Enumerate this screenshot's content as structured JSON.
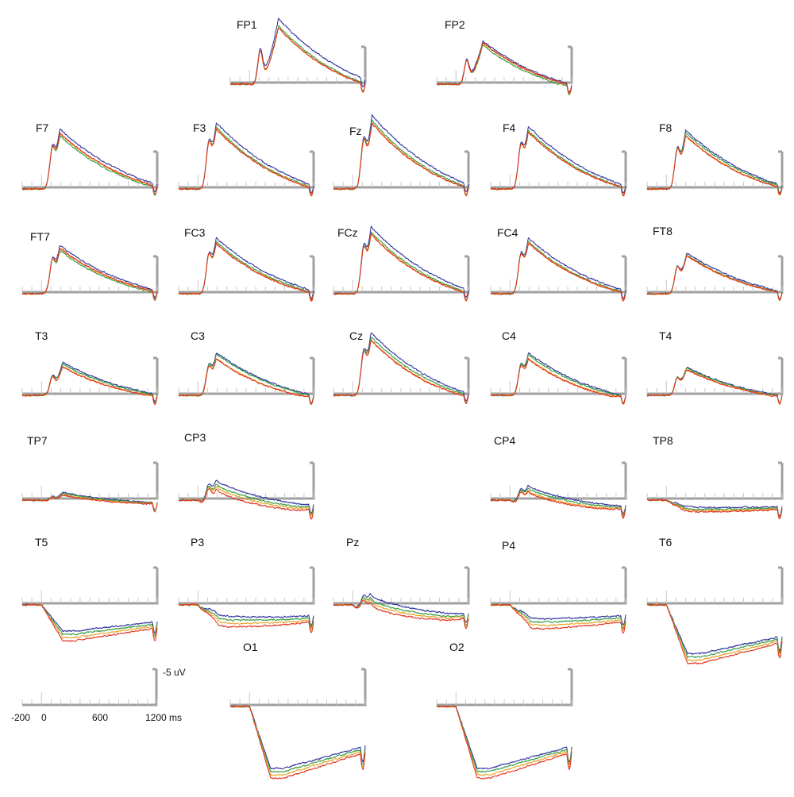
{
  "chart_data": {
    "type": "line",
    "title": "",
    "axis_color": "#a0a0a0",
    "series": [
      {
        "color": "#2b2f9a"
      },
      {
        "color": "#2e9a3c"
      },
      {
        "color": "#e8a020"
      },
      {
        "color": "#e0301e"
      }
    ],
    "scale_bar": {
      "amplitude_label": "-5 uV",
      "time_tick_labels": [
        "-200",
        "0",
        "600",
        "1200 ms"
      ],
      "x_range_ms": [
        -200,
        1200
      ],
      "y_range_uV": [
        0,
        -5
      ]
    },
    "x_ticks_ms": [
      -200,
      -100,
      0,
      100,
      200,
      300,
      400,
      500,
      600,
      700,
      800,
      900,
      1000,
      1100,
      1200
    ],
    "channels": [
      {
        "name": "FP1",
        "amp": 1.0,
        "peak_ms": 300,
        "lateness": 0.7,
        "early": 0.45,
        "spread": [
          0.06,
          0.0,
          -0.03,
          -0.05
        ],
        "ends": [
          -0.05,
          -0.1,
          -0.1,
          -0.08
        ]
      },
      {
        "name": "FP2",
        "amp": 0.7,
        "peak_ms": 280,
        "lateness": 0.55,
        "early": 0.45,
        "spread": [
          0.02,
          0.0,
          0.05,
          0.03
        ],
        "ends": [
          -0.05,
          -0.1,
          -0.1,
          -0.08
        ]
      },
      {
        "name": "F7",
        "amp": 0.85,
        "peak_ms": 190,
        "lateness": 0.8,
        "early": 0.45,
        "spread": [
          0.08,
          -0.04,
          0.0,
          0.01
        ],
        "ends": [
          0.0,
          0.0,
          0.0,
          0.0
        ]
      },
      {
        "name": "F3",
        "amp": 0.95,
        "peak_ms": 190,
        "lateness": 0.7,
        "early": 0.45,
        "spread": [
          0.07,
          0.0,
          -0.02,
          -0.03
        ],
        "ends": [
          0.0,
          0.0,
          0.0,
          0.0
        ]
      },
      {
        "name": "Fz",
        "amp": 1.05,
        "peak_ms": 200,
        "lateness": 0.7,
        "early": 0.45,
        "spread": [
          0.08,
          0.0,
          -0.03,
          -0.04
        ],
        "ends": [
          0.0,
          0.0,
          0.0,
          0.0
        ]
      },
      {
        "name": "F4",
        "amp": 0.9,
        "peak_ms": 190,
        "lateness": 0.7,
        "early": 0.45,
        "spread": [
          0.07,
          0.0,
          -0.02,
          -0.03
        ],
        "ends": [
          0.0,
          0.0,
          0.0,
          0.0
        ]
      },
      {
        "name": "F8",
        "amp": 0.85,
        "peak_ms": 200,
        "lateness": 0.75,
        "early": 0.45,
        "spread": [
          0.06,
          0.02,
          -0.03,
          -0.04
        ],
        "ends": [
          0.0,
          0.0,
          0.0,
          0.0
        ]
      },
      {
        "name": "FT7",
        "amp": 0.7,
        "peak_ms": 190,
        "lateness": 0.8,
        "early": 0.45,
        "spread": [
          0.06,
          -0.05,
          -0.01,
          0.0
        ],
        "ends": [
          0.0,
          0.0,
          0.0,
          0.0
        ]
      },
      {
        "name": "FC3",
        "amp": 0.8,
        "peak_ms": 190,
        "lateness": 0.7,
        "early": 0.45,
        "spread": [
          0.07,
          0.0,
          -0.03,
          -0.04
        ],
        "ends": [
          0.0,
          0.0,
          0.0,
          0.0
        ]
      },
      {
        "name": "FCz",
        "amp": 0.95,
        "peak_ms": 190,
        "lateness": 0.7,
        "early": 0.45,
        "spread": [
          0.08,
          0.0,
          -0.03,
          -0.04
        ],
        "ends": [
          0.0,
          0.0,
          0.0,
          0.0
        ]
      },
      {
        "name": "FC4",
        "amp": 0.8,
        "peak_ms": 190,
        "lateness": 0.7,
        "early": 0.45,
        "spread": [
          0.07,
          0.0,
          -0.02,
          -0.03
        ],
        "ends": [
          0.0,
          0.0,
          0.0,
          0.0
        ]
      },
      {
        "name": "FT8",
        "amp": 0.6,
        "peak_ms": 210,
        "lateness": 0.7,
        "early": 0.45,
        "spread": [
          0.05,
          0.0,
          -0.02,
          -0.02
        ],
        "ends": [
          0.0,
          0.0,
          0.0,
          0.0
        ]
      },
      {
        "name": "T3",
        "amp": 0.48,
        "peak_ms": 220,
        "lateness": 0.6,
        "early": 0.4,
        "spread": [
          0.05,
          0.0,
          -0.04,
          -0.05
        ],
        "ends": [
          0.0,
          0.0,
          -0.02,
          -0.02
        ]
      },
      {
        "name": "C3",
        "amp": 0.62,
        "peak_ms": 190,
        "lateness": 0.5,
        "early": 0.45,
        "spread": [
          0.06,
          0.02,
          -0.05,
          -0.06
        ],
        "ends": [
          0.0,
          0.0,
          -0.02,
          -0.02
        ]
      },
      {
        "name": "Cz",
        "amp": 0.9,
        "peak_ms": 190,
        "lateness": 0.6,
        "early": 0.45,
        "spread": [
          0.07,
          0.0,
          -0.04,
          -0.05
        ],
        "ends": [
          0.0,
          0.0,
          -0.01,
          -0.01
        ]
      },
      {
        "name": "C4",
        "amp": 0.62,
        "peak_ms": 190,
        "lateness": 0.45,
        "early": 0.45,
        "spread": [
          0.05,
          0.0,
          -0.05,
          -0.07
        ],
        "ends": [
          0.0,
          0.0,
          -0.02,
          -0.02
        ]
      },
      {
        "name": "T4",
        "amp": 0.42,
        "peak_ms": 210,
        "lateness": 0.45,
        "early": 0.4,
        "spread": [
          0.03,
          0.0,
          -0.02,
          -0.03
        ],
        "ends": [
          0.0,
          0.0,
          -0.01,
          -0.01
        ]
      },
      {
        "name": "TP7",
        "amp": 0.16,
        "peak_ms": 220,
        "lateness": 0.35,
        "early": 0.3,
        "spread": [
          0.03,
          0.02,
          -0.03,
          -0.03
        ],
        "ends": [
          -0.05,
          -0.06,
          -0.07,
          -0.08
        ]
      },
      {
        "name": "CP3",
        "amp": 0.38,
        "peak_ms": 190,
        "lateness": 0.35,
        "early": 0.45,
        "spread": [
          0.03,
          0.0,
          -0.03,
          -0.05
        ],
        "ends": [
          -0.1,
          -0.15,
          -0.18,
          -0.22
        ]
      },
      {
        "name": "CP4",
        "amp": 0.32,
        "peak_ms": 190,
        "lateness": 0.35,
        "early": 0.4,
        "spread": [
          0.02,
          0.0,
          -0.03,
          -0.04
        ],
        "ends": [
          -0.12,
          -0.15,
          -0.18,
          -0.2
        ]
      },
      {
        "name": "TP8",
        "amp": 0.05,
        "peak_ms": 220,
        "lateness": 0.3,
        "early": 0.25,
        "spread": [
          0.0,
          -0.01,
          -0.02,
          -0.02
        ],
        "ends": [
          -0.15,
          -0.18,
          -0.2,
          -0.22
        ]
      },
      {
        "name": "T5",
        "amp": 0.0,
        "peak_ms": 200,
        "lateness": 0.2,
        "early": 0.0,
        "spread": [
          0.04,
          0.0,
          -0.04,
          -0.07
        ],
        "ends": [
          -0.4,
          -0.45,
          -0.5,
          -0.55
        ]
      },
      {
        "name": "P3",
        "amp": 0.1,
        "peak_ms": 170,
        "lateness": 0.25,
        "early": 0.3,
        "spread": [
          0.04,
          0.0,
          -0.04,
          -0.07
        ],
        "ends": [
          -0.25,
          -0.3,
          -0.35,
          -0.4
        ]
      },
      {
        "name": "Pz",
        "amp": 0.32,
        "peak_ms": 180,
        "lateness": 0.3,
        "early": 0.4,
        "spread": [
          0.04,
          0.0,
          -0.04,
          -0.06
        ],
        "ends": [
          -0.2,
          -0.25,
          -0.28,
          -0.32
        ]
      },
      {
        "name": "P4",
        "amp": 0.05,
        "peak_ms": 170,
        "lateness": 0.25,
        "early": 0.3,
        "spread": [
          0.05,
          0.02,
          -0.03,
          -0.06
        ],
        "ends": [
          -0.25,
          -0.3,
          -0.35,
          -0.4
        ]
      },
      {
        "name": "T6",
        "amp": 0.0,
        "peak_ms": 200,
        "lateness": 0.2,
        "early": 0.0,
        "spread": [
          0.05,
          0.01,
          -0.04,
          -0.07
        ],
        "ends": [
          -0.75,
          -0.8,
          -0.85,
          -0.9
        ]
      },
      {
        "name": "O1",
        "amp": 0.0,
        "peak_ms": 200,
        "lateness": 0.2,
        "early": 0.0,
        "spread": [
          0.05,
          0.0,
          -0.05,
          -0.09
        ],
        "ends": [
          -0.95,
          -1.0,
          -1.05,
          -1.1
        ]
      },
      {
        "name": "O2",
        "amp": 0.0,
        "peak_ms": 200,
        "lateness": 0.2,
        "early": 0.0,
        "spread": [
          0.05,
          0.0,
          -0.05,
          -0.09
        ],
        "ends": [
          -0.95,
          -1.0,
          -1.05,
          -1.1
        ]
      }
    ]
  }
}
